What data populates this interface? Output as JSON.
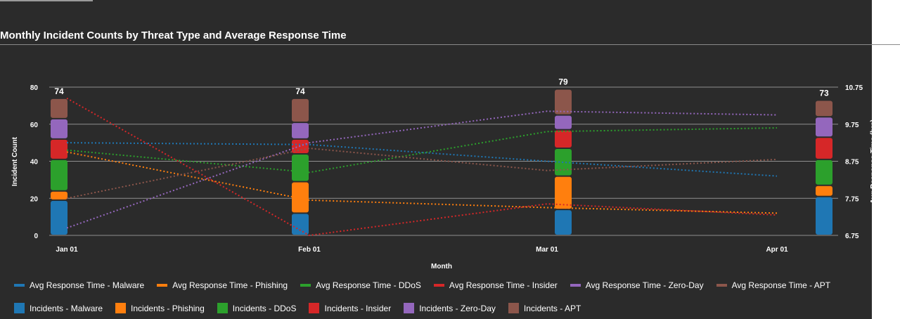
{
  "title": "Monthly Incident Counts by Threat Type and Average Response Time",
  "chart_data": {
    "type": "bar",
    "stacked": true,
    "title": "Monthly Incident Counts by Threat Type and Average Response Time",
    "xlabel": "Month",
    "ylabel": "Incident Count",
    "y2label": "Avg Response Time (hrs)",
    "categories": [
      "Jan 01",
      "Feb 01",
      "Mar 01",
      "Apr 01"
    ],
    "ylim": [
      0,
      80
    ],
    "yticks": [
      "0",
      "20",
      "40",
      "60",
      "80"
    ],
    "y2lim": [
      6.75,
      10.75
    ],
    "y2ticks": [
      "6.75",
      "7.75",
      "8.75",
      "9.75",
      "10.75"
    ],
    "totals": [
      "74",
      "74",
      "79",
      "73"
    ],
    "grid": true,
    "legend": "bottom",
    "series": [
      {
        "name": "Incidents - Malware",
        "color": "#1f77b4",
        "values": [
          19,
          12,
          14,
          21
        ]
      },
      {
        "name": "Incidents - Phishing",
        "color": "#ff7f0e",
        "values": [
          5,
          17,
          18,
          6
        ]
      },
      {
        "name": "Incidents - DDoS",
        "color": "#2ca02c",
        "values": [
          17,
          15,
          15,
          14
        ]
      },
      {
        "name": "Incidents - Insider",
        "color": "#d62728",
        "values": [
          11,
          8,
          10,
          12
        ]
      },
      {
        "name": "Incidents - Zero-Day",
        "color": "#9467bd",
        "values": [
          11,
          9,
          8,
          11
        ]
      },
      {
        "name": "Incidents - APT",
        "color": "#8c564b",
        "values": [
          11,
          13,
          14,
          9
        ]
      }
    ],
    "line_series": [
      {
        "name": "Avg Response Time - Malware",
        "color": "#1f77b4",
        "x": [
          "Jan 01",
          "Feb 01",
          "Mar 01",
          "Apr 01"
        ],
        "values": [
          9.25,
          9.2,
          8.75,
          8.35
        ]
      },
      {
        "name": "Avg Response Time - Phishing",
        "color": "#ff7f0e",
        "x": [
          "Jan 01",
          "Feb 01",
          "Mar 01",
          "Apr 01"
        ],
        "values": [
          9.0,
          7.7,
          7.5,
          7.35
        ]
      },
      {
        "name": "Avg Response Time - DDoS",
        "color": "#2ca02c",
        "x": [
          "Jan 01",
          "Feb 01",
          "Mar 01",
          "Apr 01"
        ],
        "values": [
          9.05,
          8.45,
          9.55,
          9.65
        ]
      },
      {
        "name": "Avg Response Time - Insider",
        "color": "#d62728",
        "x": [
          "Jan 01",
          "Feb 01",
          "Mar 01",
          "Apr 01"
        ],
        "values": [
          10.45,
          6.75,
          7.6,
          7.3
        ]
      },
      {
        "name": "Avg Response Time - Zero-Day",
        "color": "#9467bd",
        "x": [
          "Jan 01",
          "Feb 01",
          "Mar 01",
          "Apr 01"
        ],
        "values": [
          6.95,
          9.25,
          10.1,
          10.0
        ]
      },
      {
        "name": "Avg Response Time - APT",
        "color": "#8c564b",
        "x": [
          "Jan 01",
          "Feb 01",
          "Mar 01",
          "Apr 01"
        ],
        "values": [
          7.75,
          9.1,
          8.5,
          8.8
        ]
      }
    ]
  }
}
